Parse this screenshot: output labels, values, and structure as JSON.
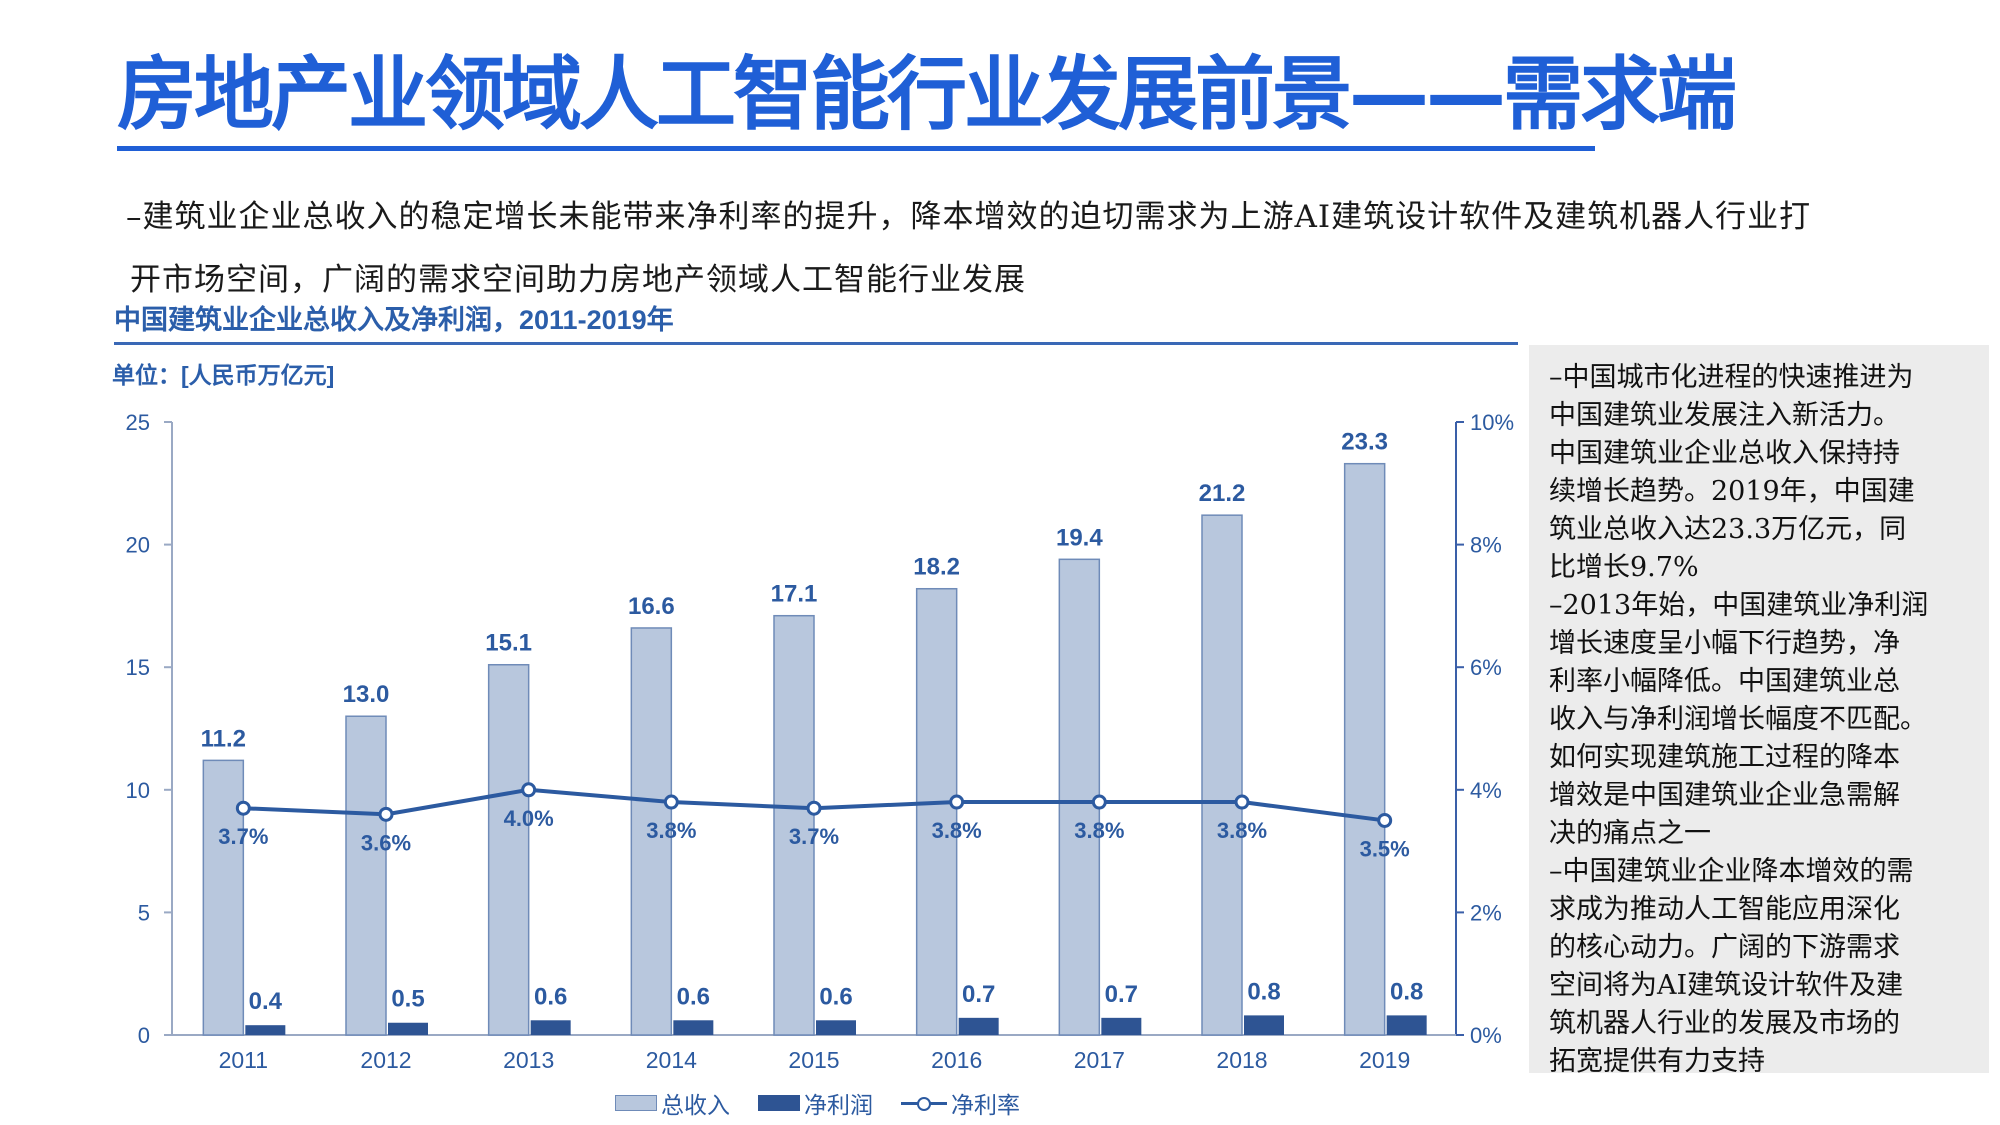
{
  "page": {
    "title": "房地产业领域人工智能行业发展前景——需求端",
    "intro_lines": [
      "–建筑业企业总收入的稳定增长未能带来净利率的提升，降本增效的迫切需求为上游AI建筑设计软件及建筑机器人行业打",
      "开市场空间，广阔的需求空间助力房地产领域人工智能行业发展"
    ],
    "chart_heading": "中国建筑业企业总收入及净利润，2011-2019年",
    "unit_label": "单位：[人民币万亿元]",
    "side_note": "–中国城市化进程的快速推进为\n中国建筑业发展注入新活力。\n中国建筑业企业总收入保持持\n续增长趋势。2019年，中国建\n筑业总收入达23.3万亿元，同\n比增长9.7%\n–2013年始，中国建筑业净利润\n增长速度呈小幅下行趋势，净\n利率小幅降低。中国建筑业总\n收入与净利润增长幅度不匹配。\n如何实现建筑施工过程的降本\n增效是中国建筑业企业急需解\n决的痛点之一\n–中国建筑业企业降本增效的需\n求成为推动人工智能应用深化\n的核心动力。广阔的下游需求\n空间将为AI建筑设计软件及建\n筑机器人行业的发展及市场的\n拓宽提供有力支持",
    "colors": {
      "title_blue": "#1f5fd6",
      "revenue_fill": "#b8c7dd",
      "profit_fill": "#2e5493",
      "line": "#2c5aa0",
      "axis_text": "#2c5aa0"
    }
  },
  "chart_data": {
    "type": "bar",
    "categories": [
      "2011",
      "2012",
      "2013",
      "2014",
      "2015",
      "2016",
      "2017",
      "2018",
      "2019"
    ],
    "series": [
      {
        "name": "总收入",
        "kind": "bar",
        "axis": "left",
        "values": [
          11.2,
          13.0,
          15.1,
          16.6,
          17.1,
          18.2,
          19.4,
          21.2,
          23.3
        ],
        "labels": [
          "11.2",
          "13.0",
          "15.1",
          "16.6",
          "17.1",
          "18.2",
          "19.4",
          "21.2",
          "23.3"
        ]
      },
      {
        "name": "净利润",
        "kind": "bar",
        "axis": "left",
        "values": [
          0.4,
          0.5,
          0.6,
          0.6,
          0.6,
          0.7,
          0.7,
          0.8,
          0.8
        ],
        "labels": [
          "0.4",
          "0.5",
          "0.6",
          "0.6",
          "0.6",
          "0.7",
          "0.7",
          "0.8",
          "0.8"
        ]
      },
      {
        "name": "净利率",
        "kind": "line",
        "axis": "right",
        "values": [
          3.7,
          3.6,
          4.0,
          3.8,
          3.7,
          3.8,
          3.8,
          3.8,
          3.5
        ],
        "labels": [
          "3.7%",
          "3.6%",
          "4.0%",
          "3.8%",
          "3.7%",
          "3.8%",
          "3.8%",
          "3.8%",
          "3.5%"
        ]
      }
    ],
    "left_axis": {
      "min": 0,
      "max": 25,
      "ticks": [
        0,
        5,
        10,
        15,
        20,
        25
      ],
      "tick_labels": [
        "0",
        "5",
        "10",
        "15",
        "20",
        "25"
      ]
    },
    "right_axis": {
      "min": 0,
      "max": 10,
      "ticks": [
        0,
        2,
        4,
        6,
        8,
        10
      ],
      "tick_labels": [
        "0%",
        "2%",
        "4%",
        "6%",
        "8%",
        "10%"
      ]
    },
    "legend": [
      "总收入",
      "净利润",
      "净利率"
    ],
    "legend_position": "bottom-center",
    "grid": false
  }
}
